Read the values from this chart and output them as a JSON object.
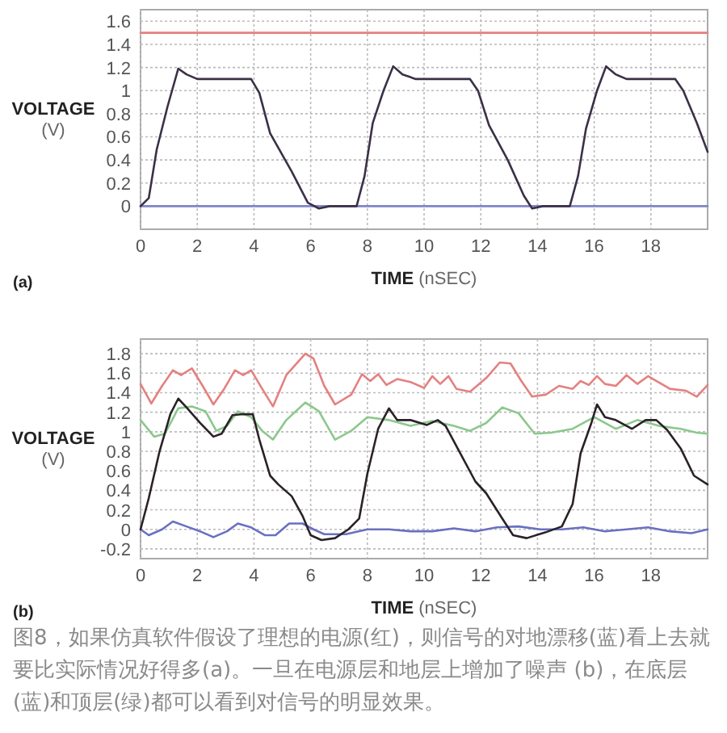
{
  "chart_data": [
    {
      "type": "line",
      "title": "(a)",
      "xlabel": "**TIME** (nSEC)",
      "ylabel": "**VOLTAGE** (V)",
      "xlim": [
        0,
        20
      ],
      "xticks": [
        0,
        2,
        4,
        6,
        8,
        10,
        12,
        14,
        16,
        18
      ],
      "ylim": [
        -0.2,
        1.7
      ],
      "yticks": [
        0,
        0.2,
        0.4,
        0.6,
        0.8,
        1,
        1.2,
        1.4,
        1.6
      ],
      "grid": true,
      "series": [
        {
          "color": "#e58080",
          "x": [
            0,
            20
          ],
          "values": [
            1.5,
            1.5
          ]
        },
        {
          "color": "#7f86c8",
          "x": [
            0,
            20
          ],
          "values": [
            0,
            0
          ]
        },
        {
          "color": "#3b3046",
          "x": [
            0,
            0.29,
            0.57,
            0.95,
            1.33,
            1.62,
            2,
            2.67,
            3.9,
            4.19,
            4.57,
            5.33,
            5.9,
            6.29,
            6.67,
            7.62,
            7.9,
            8.19,
            8.57,
            8.91,
            9.24,
            9.71,
            11.62,
            11.9,
            12.29,
            12.95,
            13.52,
            13.81,
            14.19,
            15.14,
            15.43,
            15.71,
            16.1,
            16.42,
            16.76,
            17.14,
            18.86,
            19.14,
            19.62,
            20
          ],
          "values": [
            0,
            0.07,
            0.49,
            0.86,
            1.19,
            1.14,
            1.1,
            1.1,
            1.1,
            0.98,
            0.63,
            0.3,
            0.03,
            -0.02,
            0,
            0,
            0.26,
            0.72,
            1,
            1.21,
            1.14,
            1.1,
            1.1,
            1,
            0.7,
            0.4,
            0.09,
            -0.02,
            0,
            0,
            0.26,
            0.67,
            1,
            1.21,
            1.14,
            1.1,
            1.1,
            1,
            0.72,
            0.47
          ]
        }
      ]
    },
    {
      "type": "line",
      "title": "(b)",
      "xlabel": "**TIME** (nSEC)",
      "ylabel": "**VOLTAGE** (V)",
      "xlim": [
        0,
        20
      ],
      "xticks": [
        0,
        2,
        4,
        6,
        8,
        10,
        12,
        14,
        16,
        18
      ],
      "ylim": [
        -0.3,
        1.95
      ],
      "yticks": [
        -0.2,
        0,
        0.2,
        0.4,
        0.6,
        0.8,
        1,
        1.2,
        1.4,
        1.6,
        1.8
      ],
      "grid": true,
      "annotations": [
        "图8，如果仿真软件假设了理想的电源(红)，则信号的对地漂移(蓝)看上去就要比实际情况好得多(a)。一旦在电源层和地层上增加了噪声 (b)，在底层(蓝)和顶层(绿)都可以看到对信号的明显效果。"
      ],
      "series": [
        {
          "color": "#e58080",
          "x": [
            0,
            0.38,
            0.76,
            1.14,
            1.43,
            1.81,
            2.19,
            2.57,
            2.95,
            3.33,
            3.62,
            3.9,
            4.29,
            4.67,
            5.14,
            5.81,
            6.1,
            6.48,
            6.86,
            7.43,
            7.81,
            8.1,
            8.38,
            8.67,
            9.05,
            9.52,
            10,
            10.29,
            10.57,
            10.86,
            11.14,
            11.62,
            12.19,
            12.67,
            13.05,
            13.43,
            13.81,
            14.29,
            14.76,
            15.24,
            15.52,
            15.81,
            16.1,
            16.38,
            16.76,
            17.14,
            17.52,
            17.9,
            18.19,
            18.67,
            19.24,
            19.62,
            20
          ],
          "values": [
            1.49,
            1.29,
            1.47,
            1.63,
            1.58,
            1.65,
            1.47,
            1.28,
            1.44,
            1.63,
            1.58,
            1.63,
            1.44,
            1.26,
            1.58,
            1.8,
            1.75,
            1.47,
            1.28,
            1.38,
            1.59,
            1.52,
            1.59,
            1.48,
            1.54,
            1.51,
            1.45,
            1.57,
            1.49,
            1.57,
            1.44,
            1.41,
            1.55,
            1.71,
            1.7,
            1.52,
            1.36,
            1.38,
            1.47,
            1.44,
            1.52,
            1.48,
            1.57,
            1.49,
            1.47,
            1.58,
            1.49,
            1.57,
            1.52,
            1.44,
            1.42,
            1.36,
            1.48
          ]
        },
        {
          "color": "#8cc88c",
          "x": [
            0,
            0.48,
            0.86,
            1.33,
            1.81,
            2.29,
            2.67,
            3.05,
            3.43,
            3.9,
            4.29,
            4.67,
            5.14,
            5.81,
            6.29,
            6.86,
            7.43,
            8,
            8.76,
            9.52,
            10.29,
            11.05,
            11.62,
            12.19,
            12.76,
            13.33,
            13.9,
            14.48,
            15.24,
            16,
            16.76,
            17.52,
            18.29,
            19.05,
            19.62,
            20
          ],
          "values": [
            1.12,
            0.95,
            0.98,
            1.24,
            1.26,
            1.21,
            1.01,
            1.06,
            1.21,
            1.15,
            1.01,
            0.92,
            1.12,
            1.3,
            1.21,
            0.92,
            1.01,
            1.15,
            1.12,
            1.06,
            1.11,
            1.06,
            1.01,
            1.09,
            1.25,
            1.19,
            0.98,
            0.99,
            1.03,
            1.15,
            1.03,
            1.12,
            1.06,
            1.03,
            0.99,
            0.98
          ]
        },
        {
          "color": "#6a70c0",
          "x": [
            0,
            0.29,
            0.76,
            1.14,
            1.62,
            2.1,
            2.57,
            3.05,
            3.43,
            3.9,
            4.38,
            4.76,
            5.24,
            5.71,
            6.1,
            6.48,
            7.24,
            8,
            8.76,
            9.52,
            10.29,
            11.05,
            11.81,
            12.57,
            13.33,
            14.1,
            14.86,
            15.62,
            16.38,
            17.14,
            17.9,
            18.67,
            19.43,
            20
          ],
          "values": [
            0,
            -0.06,
            0,
            0.08,
            0.03,
            -0.02,
            -0.08,
            -0.02,
            0.06,
            0.02,
            -0.06,
            -0.06,
            0.06,
            0.06,
            0,
            -0.05,
            -0.05,
            0,
            0,
            -0.02,
            -0.02,
            0.01,
            -0.02,
            0.02,
            0.03,
            0,
            0,
            0.02,
            -0.02,
            0,
            0.02,
            -0.02,
            -0.04,
            0
          ]
        },
        {
          "color": "#2a2228",
          "x": [
            0,
            0.29,
            0.67,
            1.05,
            1.33,
            1.62,
            2.1,
            2.57,
            2.86,
            3.24,
            3.62,
            3.96,
            4.19,
            4.57,
            4.86,
            5.33,
            5.71,
            6,
            6.38,
            6.86,
            7.33,
            7.71,
            8,
            8.38,
            8.76,
            9.05,
            9.52,
            10.1,
            10.48,
            10.76,
            11.24,
            11.81,
            12.19,
            12.76,
            13.14,
            13.62,
            14.29,
            14.86,
            15.24,
            15.52,
            15.9,
            16.1,
            16.38,
            16.76,
            17.33,
            17.81,
            18.19,
            18.57,
            19.05,
            19.52,
            20
          ],
          "values": [
            0,
            0.32,
            0.8,
            1.18,
            1.34,
            1.25,
            1.09,
            0.95,
            0.98,
            1.17,
            1.18,
            1.18,
            0.92,
            0.55,
            0.46,
            0.34,
            0.14,
            -0.06,
            -0.11,
            -0.09,
            0,
            0.11,
            0.57,
            1.03,
            1.24,
            1.12,
            1.12,
            1.07,
            1.12,
            1.06,
            0.8,
            0.49,
            0.37,
            0.11,
            -0.06,
            -0.09,
            -0.03,
            0.03,
            0.26,
            0.78,
            1.09,
            1.28,
            1.15,
            1.12,
            1.03,
            1.12,
            1.12,
            1.02,
            0.83,
            0.55,
            0.46
          ]
        }
      ]
    }
  ]
}
